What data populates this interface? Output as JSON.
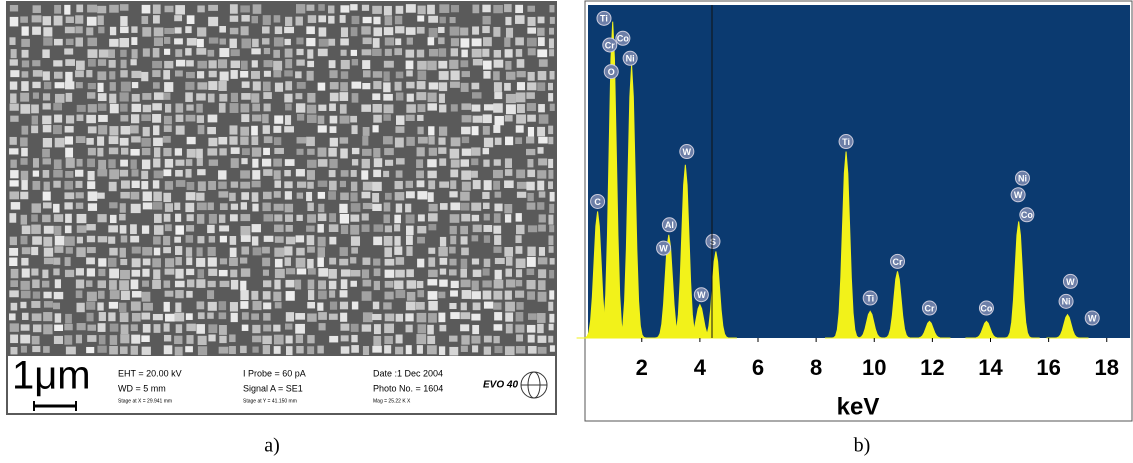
{
  "sem": {
    "scale": "1μm",
    "eht": "EHT = 20.00 kV",
    "wd": "WD = 5 mm",
    "stage_x": "Stage at X = 29.941 mm",
    "probe": "I Probe =    60 pA",
    "signal": "Signal A = SE1",
    "stage_y": "Stage at Y = 41.150 mm",
    "date": "Date :1 Dec 2004",
    "photo": "Photo No. = 1604",
    "mag": "Mag =  25.22 K X",
    "model": "EVO 40"
  },
  "chart_data": {
    "type": "spectrum",
    "xlabel": "keV",
    "xlim": [
      0.15,
      18.8
    ],
    "xticks": [
      2,
      4,
      6,
      8,
      10,
      12,
      14,
      16,
      18
    ],
    "ylim": [
      0,
      100
    ],
    "color": "#f2f21a",
    "background": "#0b3a70",
    "peaks": [
      {
        "center": 0.48,
        "height": 38
      },
      {
        "center": 1.0,
        "height": 95
      },
      {
        "center": 1.65,
        "height": 82
      },
      {
        "center": 2.93,
        "height": 31
      },
      {
        "center": 3.5,
        "height": 52
      },
      {
        "center": 4.0,
        "height": 10
      },
      {
        "center": 4.55,
        "height": 26
      },
      {
        "center": 9.03,
        "height": 56
      },
      {
        "center": 9.86,
        "height": 8
      },
      {
        "center": 10.8,
        "height": 20
      },
      {
        "center": 11.9,
        "height": 5
      },
      {
        "center": 13.86,
        "height": 5
      },
      {
        "center": 14.97,
        "height": 35
      },
      {
        "center": 16.65,
        "height": 7
      }
    ],
    "annotations": [
      {
        "text": "Ti",
        "x": 0.7,
        "y": 96
      },
      {
        "text": "Co",
        "x": 1.35,
        "y": 90
      },
      {
        "text": "Cr",
        "x": 0.9,
        "y": 88
      },
      {
        "text": "Ni",
        "x": 1.6,
        "y": 84
      },
      {
        "text": "O",
        "x": 0.95,
        "y": 80
      },
      {
        "text": "C",
        "x": 0.48,
        "y": 41
      },
      {
        "text": "Al",
        "x": 2.95,
        "y": 34
      },
      {
        "text": "W",
        "x": 2.75,
        "y": 27
      },
      {
        "text": "W",
        "x": 3.55,
        "y": 56
      },
      {
        "text": "W",
        "x": 4.05,
        "y": 13
      },
      {
        "text": "S",
        "x": 4.45,
        "y": 29
      },
      {
        "text": "Ti",
        "x": 9.03,
        "y": 59
      },
      {
        "text": "Ti",
        "x": 9.86,
        "y": 12
      },
      {
        "text": "Cr",
        "x": 10.8,
        "y": 23
      },
      {
        "text": "Cr",
        "x": 11.9,
        "y": 9
      },
      {
        "text": "Co",
        "x": 13.86,
        "y": 9
      },
      {
        "text": "Ni",
        "x": 15.1,
        "y": 48
      },
      {
        "text": "W",
        "x": 14.95,
        "y": 43
      },
      {
        "text": "Co",
        "x": 15.25,
        "y": 37
      },
      {
        "text": "W",
        "x": 16.75,
        "y": 17
      },
      {
        "text": "Ni",
        "x": 16.6,
        "y": 11
      },
      {
        "text": "W",
        "x": 17.5,
        "y": 6
      }
    ]
  },
  "captions": [
    "a)",
    "b)"
  ]
}
